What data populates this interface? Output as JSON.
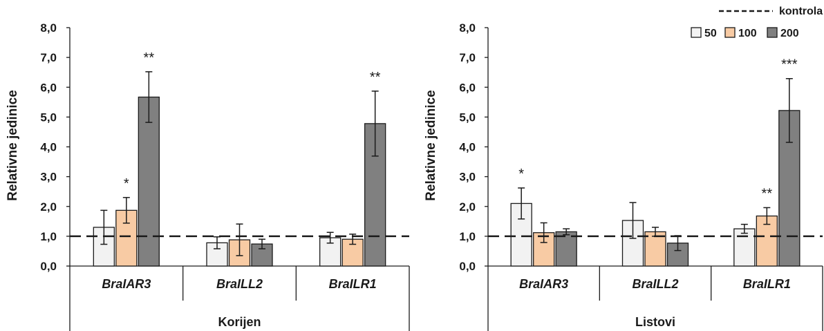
{
  "legend": {
    "control_label": "kontrola",
    "series_labels": [
      "50",
      "100",
      "200"
    ]
  },
  "colors": {
    "s50": "#f2f2f2",
    "s100": "#f8cba4",
    "s200": "#808080",
    "stroke": "#1a1a1a"
  },
  "chart_data": [
    {
      "type": "bar",
      "group_label": "Korijen",
      "ylabel": "Relativne jedinice",
      "ylim": [
        0,
        8
      ],
      "yticks": [
        "0,0",
        "1,0",
        "2,0",
        "3,0",
        "4,0",
        "5,0",
        "6,0",
        "7,0",
        "8,0"
      ],
      "control_line": 1.0,
      "categories": [
        "BraIAR3",
        "BraILL2",
        "BraILR1"
      ],
      "series": [
        {
          "name": "50",
          "values": [
            1.3,
            0.78,
            0.95
          ],
          "errors": [
            0.57,
            0.2,
            0.18
          ]
        },
        {
          "name": "100",
          "values": [
            1.87,
            0.88,
            0.9
          ],
          "errors": [
            0.43,
            0.53,
            0.17
          ]
        },
        {
          "name": "200",
          "values": [
            5.67,
            0.74,
            4.78
          ],
          "errors": [
            0.85,
            0.16,
            1.09
          ]
        }
      ],
      "significance": [
        {
          "category": 0,
          "series": 1,
          "label": "*"
        },
        {
          "category": 0,
          "series": 2,
          "label": "**"
        },
        {
          "category": 2,
          "series": 2,
          "label": "**"
        }
      ]
    },
    {
      "type": "bar",
      "group_label": "Listovi",
      "ylabel": "Relativne jedinice",
      "ylim": [
        0,
        8
      ],
      "yticks": [
        "0,0",
        "1,0",
        "2,0",
        "3,0",
        "4,0",
        "5,0",
        "6,0",
        "7,0",
        "8,0"
      ],
      "control_line": 1.0,
      "categories": [
        "BraIAR3",
        "BraILL2",
        "BraILR1"
      ],
      "series": [
        {
          "name": "50",
          "values": [
            2.1,
            1.53,
            1.25
          ],
          "errors": [
            0.52,
            0.6,
            0.15
          ]
        },
        {
          "name": "100",
          "values": [
            1.12,
            1.15,
            1.68
          ],
          "errors": [
            0.33,
            0.15,
            0.28
          ]
        },
        {
          "name": "200",
          "values": [
            1.15,
            0.77,
            5.22
          ],
          "errors": [
            0.1,
            0.25,
            1.07
          ]
        }
      ],
      "significance": [
        {
          "category": 0,
          "series": 0,
          "label": "*"
        },
        {
          "category": 2,
          "series": 1,
          "label": "**"
        },
        {
          "category": 2,
          "series": 2,
          "label": "***"
        }
      ]
    }
  ]
}
